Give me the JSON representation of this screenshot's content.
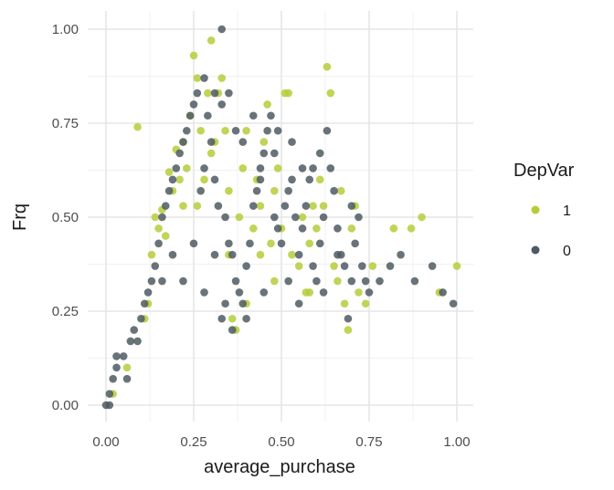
{
  "chart_data": {
    "type": "scatter",
    "xlabel": "average_purchase",
    "ylabel": "Frq",
    "xlim": [
      0,
      1
    ],
    "ylim": [
      0,
      1
    ],
    "x_ticks": [
      "0.00",
      "0.25",
      "0.50",
      "0.75",
      "1.00"
    ],
    "y_ticks": [
      "0.00",
      "0.25",
      "0.50",
      "0.75",
      "1.00"
    ],
    "grid": true,
    "legend": {
      "title": "DepVar",
      "placement": "right",
      "entries": [
        {
          "label": "1",
          "color": "#b5cc3a"
        },
        {
          "label": "0",
          "color": "#4e5a63"
        }
      ]
    },
    "series": [
      {
        "name": "1",
        "color": "#b5cc3a",
        "points": [
          [
            0.02,
            0.03
          ],
          [
            0.06,
            0.1
          ],
          [
            0.09,
            0.74
          ],
          [
            0.11,
            0.23
          ],
          [
            0.12,
            0.27
          ],
          [
            0.13,
            0.4
          ],
          [
            0.14,
            0.5
          ],
          [
            0.15,
            0.47
          ],
          [
            0.16,
            0.52
          ],
          [
            0.17,
            0.45
          ],
          [
            0.18,
            0.62
          ],
          [
            0.19,
            0.57
          ],
          [
            0.2,
            0.68
          ],
          [
            0.21,
            0.6
          ],
          [
            0.22,
            0.7
          ],
          [
            0.23,
            0.63
          ],
          [
            0.24,
            0.77
          ],
          [
            0.25,
            0.93
          ],
          [
            0.26,
            0.87
          ],
          [
            0.27,
            0.73
          ],
          [
            0.28,
            0.6
          ],
          [
            0.29,
            0.83
          ],
          [
            0.3,
            0.97
          ],
          [
            0.31,
            0.7
          ],
          [
            0.32,
            0.83
          ],
          [
            0.33,
            0.87
          ],
          [
            0.34,
            0.73
          ],
          [
            0.35,
            0.57
          ],
          [
            0.37,
            0.2
          ],
          [
            0.38,
            0.5
          ],
          [
            0.39,
            0.63
          ],
          [
            0.4,
            0.73
          ],
          [
            0.42,
            0.47
          ],
          [
            0.43,
            0.6
          ],
          [
            0.44,
            0.53
          ],
          [
            0.45,
            0.7
          ],
          [
            0.46,
            0.8
          ],
          [
            0.47,
            0.43
          ],
          [
            0.48,
            0.57
          ],
          [
            0.49,
            0.63
          ],
          [
            0.5,
            0.47
          ],
          [
            0.51,
            0.83
          ],
          [
            0.52,
            0.83
          ],
          [
            0.53,
            0.4
          ],
          [
            0.55,
            0.37
          ],
          [
            0.56,
            0.5
          ],
          [
            0.57,
            0.3
          ],
          [
            0.58,
            0.43
          ],
          [
            0.59,
            0.53
          ],
          [
            0.6,
            0.47
          ],
          [
            0.61,
            0.6
          ],
          [
            0.62,
            0.53
          ],
          [
            0.63,
            0.9
          ],
          [
            0.64,
            0.83
          ],
          [
            0.65,
            0.37
          ],
          [
            0.66,
            0.33
          ],
          [
            0.67,
            0.57
          ],
          [
            0.68,
            0.27
          ],
          [
            0.69,
            0.2
          ],
          [
            0.7,
            0.47
          ],
          [
            0.71,
            0.53
          ],
          [
            0.72,
            0.3
          ],
          [
            0.74,
            0.27
          ],
          [
            0.76,
            0.37
          ],
          [
            0.82,
            0.47
          ],
          [
            0.87,
            0.47
          ],
          [
            0.9,
            0.5
          ],
          [
            0.95,
            0.3
          ],
          [
            1.0,
            0.37
          ],
          [
            0.36,
            0.23
          ],
          [
            0.4,
            0.27
          ],
          [
            0.48,
            0.33
          ],
          [
            0.58,
            0.3
          ],
          [
            0.26,
            0.53
          ],
          [
            0.22,
            0.53
          ],
          [
            0.3,
            0.67
          ],
          [
            0.35,
            0.4
          ],
          [
            0.44,
            0.4
          ]
        ]
      },
      {
        "name": "0",
        "color": "#4e5a63",
        "points": [
          [
            0.0,
            0.0
          ],
          [
            0.01,
            0.0
          ],
          [
            0.01,
            0.03
          ],
          [
            0.02,
            0.07
          ],
          [
            0.03,
            0.1
          ],
          [
            0.03,
            0.13
          ],
          [
            0.05,
            0.13
          ],
          [
            0.06,
            0.07
          ],
          [
            0.07,
            0.17
          ],
          [
            0.08,
            0.2
          ],
          [
            0.09,
            0.17
          ],
          [
            0.1,
            0.23
          ],
          [
            0.11,
            0.27
          ],
          [
            0.12,
            0.3
          ],
          [
            0.13,
            0.33
          ],
          [
            0.14,
            0.37
          ],
          [
            0.15,
            0.43
          ],
          [
            0.16,
            0.5
          ],
          [
            0.17,
            0.53
          ],
          [
            0.18,
            0.57
          ],
          [
            0.19,
            0.6
          ],
          [
            0.2,
            0.63
          ],
          [
            0.21,
            0.67
          ],
          [
            0.22,
            0.7
          ],
          [
            0.23,
            0.73
          ],
          [
            0.24,
            0.77
          ],
          [
            0.25,
            0.8
          ],
          [
            0.26,
            0.83
          ],
          [
            0.27,
            0.57
          ],
          [
            0.28,
            0.63
          ],
          [
            0.29,
            0.77
          ],
          [
            0.3,
            0.7
          ],
          [
            0.31,
            0.6
          ],
          [
            0.32,
            0.53
          ],
          [
            0.33,
            1.0
          ],
          [
            0.34,
            0.5
          ],
          [
            0.35,
            0.43
          ],
          [
            0.36,
            0.4
          ],
          [
            0.37,
            0.33
          ],
          [
            0.38,
            0.3
          ],
          [
            0.39,
            0.27
          ],
          [
            0.4,
            0.37
          ],
          [
            0.41,
            0.43
          ],
          [
            0.42,
            0.53
          ],
          [
            0.43,
            0.57
          ],
          [
            0.44,
            0.63
          ],
          [
            0.45,
            0.67
          ],
          [
            0.46,
            0.73
          ],
          [
            0.47,
            0.77
          ],
          [
            0.48,
            0.5
          ],
          [
            0.49,
            0.47
          ],
          [
            0.5,
            0.43
          ],
          [
            0.51,
            0.53
          ],
          [
            0.52,
            0.57
          ],
          [
            0.53,
            0.6
          ],
          [
            0.54,
            0.5
          ],
          [
            0.55,
            0.4
          ],
          [
            0.56,
            0.47
          ],
          [
            0.57,
            0.53
          ],
          [
            0.58,
            0.6
          ],
          [
            0.59,
            0.37
          ],
          [
            0.6,
            0.33
          ],
          [
            0.61,
            0.43
          ],
          [
            0.62,
            0.5
          ],
          [
            0.63,
            0.73
          ],
          [
            0.64,
            0.63
          ],
          [
            0.65,
            0.57
          ],
          [
            0.66,
            0.47
          ],
          [
            0.67,
            0.4
          ],
          [
            0.68,
            0.37
          ],
          [
            0.69,
            0.23
          ],
          [
            0.7,
            0.33
          ],
          [
            0.71,
            0.43
          ],
          [
            0.72,
            0.5
          ],
          [
            0.73,
            0.37
          ],
          [
            0.74,
            0.33
          ],
          [
            0.75,
            0.3
          ],
          [
            0.78,
            0.33
          ],
          [
            0.81,
            0.37
          ],
          [
            0.84,
            0.4
          ],
          [
            0.88,
            0.33
          ],
          [
            0.93,
            0.37
          ],
          [
            0.96,
            0.3
          ],
          [
            0.99,
            0.27
          ],
          [
            0.28,
            0.3
          ],
          [
            0.34,
            0.27
          ],
          [
            0.36,
            0.2
          ],
          [
            0.33,
            0.23
          ],
          [
            0.4,
            0.23
          ],
          [
            0.25,
            0.43
          ],
          [
            0.31,
            0.4
          ],
          [
            0.22,
            0.33
          ],
          [
            0.19,
            0.4
          ],
          [
            0.16,
            0.33
          ],
          [
            0.45,
            0.3
          ],
          [
            0.52,
            0.33
          ],
          [
            0.55,
            0.27
          ],
          [
            0.62,
            0.3
          ],
          [
            0.66,
            0.4
          ],
          [
            0.7,
            0.53
          ],
          [
            0.61,
            0.67
          ],
          [
            0.59,
            0.63
          ],
          [
            0.53,
            0.7
          ],
          [
            0.48,
            0.67
          ],
          [
            0.42,
            0.77
          ],
          [
            0.37,
            0.73
          ],
          [
            0.33,
            0.8
          ],
          [
            0.28,
            0.87
          ],
          [
            0.31,
            0.83
          ],
          [
            0.35,
            0.83
          ],
          [
            0.39,
            0.7
          ],
          [
            0.44,
            0.6
          ],
          [
            0.49,
            0.73
          ],
          [
            0.56,
            0.63
          ]
        ]
      }
    ]
  }
}
